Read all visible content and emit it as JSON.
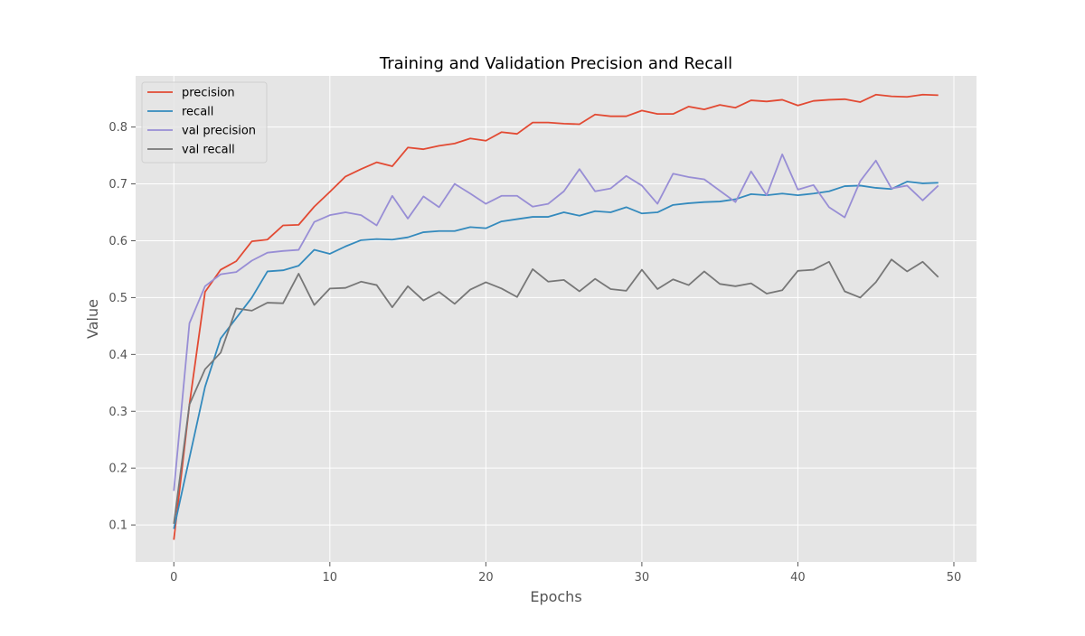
{
  "chart_data": {
    "type": "line",
    "title": "Training and Validation Precision and Recall",
    "xlabel": "Epochs",
    "ylabel": "Value",
    "xlim": [
      -2.45,
      51.45
    ],
    "ylim": [
      0.035,
      0.89
    ],
    "xticks": [
      0,
      10,
      20,
      30,
      40,
      50
    ],
    "yticks": [
      0.1,
      0.2,
      0.3,
      0.4,
      0.5,
      0.6,
      0.7,
      0.8
    ],
    "grid": true,
    "legend": "top-left",
    "x": [
      0,
      1,
      2,
      3,
      4,
      5,
      6,
      7,
      8,
      9,
      10,
      11,
      12,
      13,
      14,
      15,
      16,
      17,
      18,
      19,
      20,
      21,
      22,
      23,
      24,
      25,
      26,
      27,
      28,
      29,
      30,
      31,
      32,
      33,
      34,
      35,
      36,
      37,
      38,
      39,
      40,
      41,
      42,
      43,
      44,
      45,
      46,
      47,
      48,
      49
    ],
    "series": [
      {
        "name": "precision",
        "color": "#E24A33",
        "values": [
          0.074,
          0.312,
          0.51,
          0.549,
          0.564,
          0.599,
          0.602,
          0.627,
          0.628,
          0.66,
          0.686,
          0.713,
          0.726,
          0.738,
          0.731,
          0.764,
          0.761,
          0.767,
          0.771,
          0.78,
          0.776,
          0.791,
          0.788,
          0.808,
          0.808,
          0.806,
          0.805,
          0.822,
          0.819,
          0.819,
          0.829,
          0.823,
          0.823,
          0.836,
          0.831,
          0.839,
          0.834,
          0.847,
          0.845,
          0.848,
          0.838,
          0.846,
          0.848,
          0.849,
          0.844,
          0.857,
          0.854,
          0.853,
          0.857,
          0.856
        ]
      },
      {
        "name": "recall",
        "color": "#348ABD",
        "values": [
          0.093,
          0.218,
          0.343,
          0.428,
          0.464,
          0.5,
          0.546,
          0.548,
          0.556,
          0.584,
          0.577,
          0.59,
          0.601,
          0.603,
          0.602,
          0.606,
          0.615,
          0.617,
          0.617,
          0.624,
          0.622,
          0.634,
          0.638,
          0.642,
          0.642,
          0.65,
          0.644,
          0.652,
          0.65,
          0.659,
          0.648,
          0.65,
          0.663,
          0.666,
          0.668,
          0.669,
          0.673,
          0.682,
          0.68,
          0.683,
          0.68,
          0.683,
          0.687,
          0.696,
          0.697,
          0.693,
          0.691,
          0.704,
          0.701,
          0.702
        ]
      },
      {
        "name": "val precision",
        "color": "#988ED5",
        "values": [
          0.16,
          0.455,
          0.52,
          0.541,
          0.545,
          0.565,
          0.579,
          0.582,
          0.584,
          0.633,
          0.645,
          0.65,
          0.645,
          0.627,
          0.679,
          0.639,
          0.678,
          0.659,
          0.7,
          0.683,
          0.665,
          0.679,
          0.679,
          0.66,
          0.665,
          0.687,
          0.726,
          0.687,
          0.692,
          0.714,
          0.697,
          0.665,
          0.718,
          0.712,
          0.708,
          0.688,
          0.668,
          0.722,
          0.68,
          0.752,
          0.69,
          0.698,
          0.659,
          0.641,
          0.705,
          0.741,
          0.692,
          0.697,
          0.671,
          0.697
        ]
      },
      {
        "name": "val recall",
        "color": "#777777",
        "values": [
          0.102,
          0.312,
          0.374,
          0.403,
          0.481,
          0.477,
          0.491,
          0.49,
          0.542,
          0.487,
          0.516,
          0.517,
          0.528,
          0.522,
          0.483,
          0.52,
          0.495,
          0.51,
          0.489,
          0.514,
          0.527,
          0.516,
          0.501,
          0.55,
          0.528,
          0.531,
          0.511,
          0.533,
          0.515,
          0.512,
          0.549,
          0.515,
          0.532,
          0.522,
          0.546,
          0.524,
          0.52,
          0.525,
          0.507,
          0.513,
          0.547,
          0.549,
          0.563,
          0.511,
          0.5,
          0.527,
          0.567,
          0.546,
          0.563,
          0.536
        ]
      }
    ]
  }
}
